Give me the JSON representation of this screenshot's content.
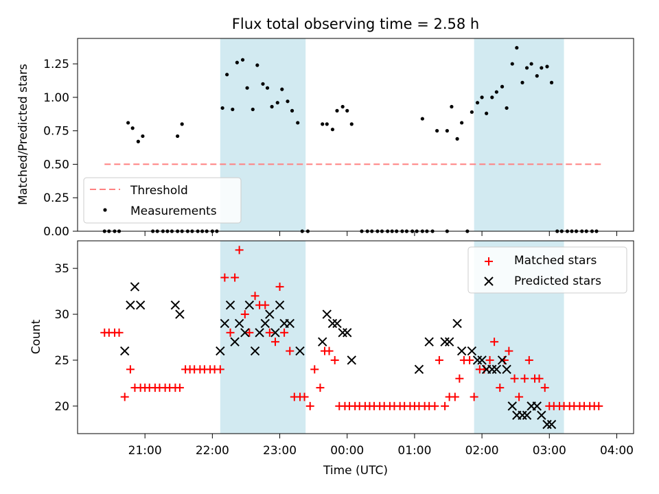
{
  "chart_data": [
    {
      "type": "scatter",
      "title": "Flux total observing time = 2.58 h",
      "xlabel": "",
      "ylabel": "Matched/Predicted stars",
      "ylim": [
        0,
        1.44
      ],
      "yticks": [
        "0.00",
        "0.25",
        "0.50",
        "0.75",
        "1.00",
        "1.25"
      ],
      "legend": {
        "position": "lower-left",
        "entries": [
          "Threshold",
          "Measurements"
        ]
      },
      "threshold": {
        "name": "Threshold",
        "value": 0.5,
        "x_range": [
          "20:24",
          "03:48"
        ],
        "color": "#ff8080",
        "style": "dashed"
      },
      "shaded_intervals": [
        [
          "22:07",
          "23:23"
        ],
        [
          "01:53",
          "03:13"
        ]
      ],
      "series": [
        {
          "name": "Measurements",
          "marker": "dot",
          "color": "#000000",
          "points": [
            [
              "20:24",
              0
            ],
            [
              "20:28",
              0
            ],
            [
              "20:33",
              0
            ],
            [
              "20:37",
              0
            ],
            [
              "20:45",
              0.81
            ],
            [
              "20:49",
              0.77
            ],
            [
              "20:54",
              0.67
            ],
            [
              "20:58",
              0.71
            ],
            [
              "21:07",
              0
            ],
            [
              "21:11",
              0
            ],
            [
              "21:16",
              0
            ],
            [
              "21:20",
              0
            ],
            [
              "21:24",
              0
            ],
            [
              "21:29",
              0
            ],
            [
              "21:33",
              0
            ],
            [
              "21:38",
              0
            ],
            [
              "21:29",
              0.71
            ],
            [
              "21:33",
              0.8
            ],
            [
              "21:42",
              0
            ],
            [
              "21:47",
              0
            ],
            [
              "21:51",
              0
            ],
            [
              "21:55",
              0
            ],
            [
              "22:00",
              0
            ],
            [
              "22:04",
              0
            ],
            [
              "22:09",
              0.92
            ],
            [
              "22:13",
              1.17
            ],
            [
              "22:18",
              0.91
            ],
            [
              "22:22",
              1.26
            ],
            [
              "22:27",
              1.28
            ],
            [
              "22:31",
              1.07
            ],
            [
              "22:36",
              0.91
            ],
            [
              "22:40",
              1.24
            ],
            [
              "22:45",
              1.1
            ],
            [
              "22:49",
              1.07
            ],
            [
              "22:53",
              0.93
            ],
            [
              "22:58",
              0.96
            ],
            [
              "23:02",
              1.06
            ],
            [
              "23:07",
              0.97
            ],
            [
              "23:11",
              0.9
            ],
            [
              "23:16",
              0.81
            ],
            [
              "23:20",
              0
            ],
            [
              "23:25",
              0
            ],
            [
              "23:38",
              0.8
            ],
            [
              "23:42",
              0.8
            ],
            [
              "23:47",
              0.76
            ],
            [
              "23:51",
              0.9
            ],
            [
              "23:56",
              0.93
            ],
            [
              "00:00",
              0.9
            ],
            [
              "00:04",
              0.8
            ],
            [
              "00:13",
              0
            ],
            [
              "00:18",
              0
            ],
            [
              "00:22",
              0
            ],
            [
              "00:27",
              0
            ],
            [
              "00:31",
              0
            ],
            [
              "00:36",
              0
            ],
            [
              "00:40",
              0
            ],
            [
              "00:44",
              0
            ],
            [
              "00:49",
              0
            ],
            [
              "00:53",
              0
            ],
            [
              "00:58",
              0
            ],
            [
              "01:02",
              0
            ],
            [
              "01:07",
              0
            ],
            [
              "01:11",
              0
            ],
            [
              "01:07",
              0.84
            ],
            [
              "01:16",
              0
            ],
            [
              "01:20",
              0.75
            ],
            [
              "01:29",
              0
            ],
            [
              "01:29",
              0.75
            ],
            [
              "01:33",
              0.93
            ],
            [
              "01:38",
              0.69
            ],
            [
              "01:42",
              0.81
            ],
            [
              "01:47",
              0
            ],
            [
              "01:51",
              0.89
            ],
            [
              "01:56",
              0.96
            ],
            [
              "02:00",
              1.0
            ],
            [
              "02:04",
              0.88
            ],
            [
              "02:09",
              1.0
            ],
            [
              "02:13",
              1.04
            ],
            [
              "02:18",
              1.08
            ],
            [
              "02:22",
              0.92
            ],
            [
              "02:27",
              1.25
            ],
            [
              "02:31",
              1.37
            ],
            [
              "02:36",
              1.11
            ],
            [
              "02:40",
              1.22
            ],
            [
              "02:44",
              1.25
            ],
            [
              "02:49",
              1.16
            ],
            [
              "02:53",
              1.22
            ],
            [
              "02:58",
              1.23
            ],
            [
              "03:02",
              1.11
            ],
            [
              "03:07",
              0
            ],
            [
              "03:11",
              0
            ],
            [
              "03:16",
              0
            ],
            [
              "03:20",
              0
            ],
            [
              "03:24",
              0
            ],
            [
              "03:29",
              0
            ],
            [
              "03:33",
              0
            ],
            [
              "03:38",
              0
            ],
            [
              "03:42",
              0
            ]
          ]
        }
      ]
    },
    {
      "type": "scatter",
      "title": "",
      "xlabel": "Time (UTC)",
      "ylabel": "Count",
      "ylim": [
        17,
        38
      ],
      "yticks": [
        "20",
        "25",
        "30",
        "35"
      ],
      "xticks": [
        "21:00",
        "22:00",
        "23:00",
        "00:00",
        "01:00",
        "02:00",
        "03:00",
        "04:00"
      ],
      "legend": {
        "position": "upper-right",
        "entries": [
          "Matched stars",
          "Predicted stars"
        ]
      },
      "shaded_intervals": [
        [
          "22:07",
          "23:23"
        ],
        [
          "01:53",
          "03:13"
        ]
      ],
      "series": [
        {
          "name": "Matched stars",
          "marker": "plus",
          "color": "#ff0000",
          "points": [
            [
              "20:24",
              28
            ],
            [
              "20:28",
              28
            ],
            [
              "20:33",
              28
            ],
            [
              "20:37",
              28
            ],
            [
              "20:42",
              21
            ],
            [
              "20:47",
              24
            ],
            [
              "20:51",
              22
            ],
            [
              "20:56",
              22
            ],
            [
              "21:00",
              22
            ],
            [
              "21:04",
              22
            ],
            [
              "21:09",
              22
            ],
            [
              "21:13",
              22
            ],
            [
              "21:18",
              22
            ],
            [
              "21:22",
              22
            ],
            [
              "21:27",
              22
            ],
            [
              "21:31",
              22
            ],
            [
              "21:36",
              24
            ],
            [
              "21:40",
              24
            ],
            [
              "21:44",
              24
            ],
            [
              "21:49",
              24
            ],
            [
              "21:53",
              24
            ],
            [
              "21:58",
              24
            ],
            [
              "22:02",
              24
            ],
            [
              "22:07",
              24
            ],
            [
              "22:11",
              34
            ],
            [
              "22:16",
              28
            ],
            [
              "22:20",
              34
            ],
            [
              "22:24",
              37
            ],
            [
              "22:29",
              30
            ],
            [
              "22:33",
              28
            ],
            [
              "22:38",
              32
            ],
            [
              "22:42",
              31
            ],
            [
              "22:47",
              31
            ],
            [
              "22:51",
              28
            ],
            [
              "22:56",
              27
            ],
            [
              "23:00",
              33
            ],
            [
              "23:04",
              28
            ],
            [
              "23:09",
              26
            ],
            [
              "23:13",
              21
            ],
            [
              "23:18",
              21
            ],
            [
              "23:22",
              21
            ],
            [
              "23:27",
              20
            ],
            [
              "23:31",
              24
            ],
            [
              "23:36",
              22
            ],
            [
              "23:40",
              26
            ],
            [
              "23:44",
              26
            ],
            [
              "23:49",
              25
            ],
            [
              "23:53",
              20
            ],
            [
              "23:58",
              20
            ],
            [
              "00:02",
              20
            ],
            [
              "00:07",
              20
            ],
            [
              "00:11",
              20
            ],
            [
              "00:16",
              20
            ],
            [
              "00:20",
              20
            ],
            [
              "00:24",
              20
            ],
            [
              "00:29",
              20
            ],
            [
              "00:33",
              20
            ],
            [
              "00:38",
              20
            ],
            [
              "00:42",
              20
            ],
            [
              "00:47",
              20
            ],
            [
              "00:51",
              20
            ],
            [
              "00:56",
              20
            ],
            [
              "01:00",
              20
            ],
            [
              "01:04",
              20
            ],
            [
              "01:09",
              20
            ],
            [
              "01:13",
              20
            ],
            [
              "01:18",
              20
            ],
            [
              "01:22",
              25
            ],
            [
              "01:27",
              20
            ],
            [
              "01:31",
              21
            ],
            [
              "01:36",
              21
            ],
            [
              "01:40",
              23
            ],
            [
              "01:44",
              25
            ],
            [
              "01:49",
              25
            ],
            [
              "01:53",
              21
            ],
            [
              "01:58",
              24
            ],
            [
              "02:02",
              24
            ],
            [
              "02:07",
              25
            ],
            [
              "02:11",
              27
            ],
            [
              "02:16",
              22
            ],
            [
              "02:20",
              25
            ],
            [
              "02:24",
              26
            ],
            [
              "02:29",
              23
            ],
            [
              "02:33",
              21
            ],
            [
              "02:38",
              23
            ],
            [
              "02:42",
              25
            ],
            [
              "02:47",
              23
            ],
            [
              "02:51",
              23
            ],
            [
              "02:56",
              22
            ],
            [
              "03:00",
              20
            ],
            [
              "03:04",
              20
            ],
            [
              "03:09",
              20
            ],
            [
              "03:13",
              20
            ],
            [
              "03:18",
              20
            ],
            [
              "03:22",
              20
            ],
            [
              "03:27",
              20
            ],
            [
              "03:31",
              20
            ],
            [
              "03:36",
              20
            ],
            [
              "03:40",
              20
            ],
            [
              "03:44",
              20
            ]
          ]
        },
        {
          "name": "Predicted stars",
          "marker": "x",
          "color": "#000000",
          "points": [
            [
              "20:42",
              26
            ],
            [
              "20:47",
              31
            ],
            [
              "20:51",
              33
            ],
            [
              "20:56",
              31
            ],
            [
              "21:27",
              31
            ],
            [
              "21:31",
              30
            ],
            [
              "22:07",
              26
            ],
            [
              "22:11",
              29
            ],
            [
              "22:16",
              31
            ],
            [
              "22:20",
              27
            ],
            [
              "22:24",
              29
            ],
            [
              "22:29",
              28
            ],
            [
              "22:33",
              31
            ],
            [
              "22:38",
              26
            ],
            [
              "22:42",
              28
            ],
            [
              "22:47",
              29
            ],
            [
              "22:51",
              30
            ],
            [
              "22:56",
              28
            ],
            [
              "23:00",
              31
            ],
            [
              "23:04",
              29
            ],
            [
              "23:09",
              29
            ],
            [
              "23:18",
              26
            ],
            [
              "23:38",
              27
            ],
            [
              "23:42",
              30
            ],
            [
              "23:47",
              29
            ],
            [
              "23:51",
              29
            ],
            [
              "23:56",
              28
            ],
            [
              "00:00",
              28
            ],
            [
              "00:04",
              25
            ],
            [
              "01:04",
              24
            ],
            [
              "01:13",
              27
            ],
            [
              "01:27",
              27
            ],
            [
              "01:31",
              27
            ],
            [
              "01:38",
              29
            ],
            [
              "01:42",
              26
            ],
            [
              "01:51",
              26
            ],
            [
              "01:56",
              25
            ],
            [
              "02:00",
              25
            ],
            [
              "02:04",
              24
            ],
            [
              "02:09",
              24
            ],
            [
              "02:13",
              24
            ],
            [
              "02:18",
              25
            ],
            [
              "02:22",
              24
            ],
            [
              "02:27",
              20
            ],
            [
              "02:31",
              19
            ],
            [
              "02:36",
              19
            ],
            [
              "02:40",
              19
            ],
            [
              "02:44",
              20
            ],
            [
              "02:49",
              20
            ],
            [
              "02:53",
              19
            ],
            [
              "02:58",
              18
            ],
            [
              "03:02",
              18
            ]
          ]
        }
      ]
    }
  ]
}
